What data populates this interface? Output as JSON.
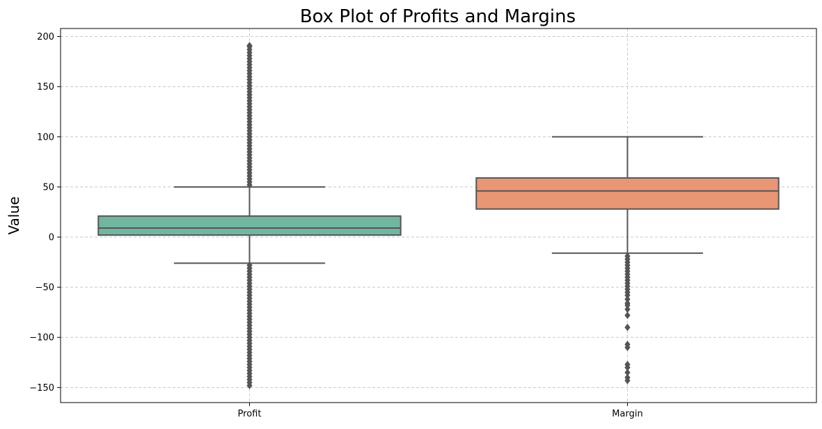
{
  "chart_data": {
    "type": "box",
    "title": "Box Plot of Profits and Margins",
    "xlabel": "",
    "ylabel": "Value",
    "ylim": [
      -165,
      208
    ],
    "yticks": [
      -150,
      -100,
      -50,
      0,
      50,
      100,
      150,
      200
    ],
    "ytick_labels": [
      "−150",
      "−100",
      "−50",
      "0",
      "50",
      "100",
      "150",
      "200"
    ],
    "grid": true,
    "categories": [
      "Profit",
      "Margin"
    ],
    "boxes": [
      {
        "category": "Profit",
        "color": "#72b6a1",
        "whisker_low": -26,
        "q1": 2,
        "median": 9,
        "q3": 21,
        "whisker_high": 50,
        "outliers_high": [
          52,
          55,
          58,
          61,
          64,
          67,
          70,
          73,
          76,
          79,
          82,
          85,
          88,
          91,
          94,
          97,
          100,
          103,
          106,
          109,
          112,
          115,
          118,
          121,
          124,
          127,
          130,
          133,
          136,
          139,
          142,
          145,
          148,
          151,
          154,
          157,
          160,
          163,
          166,
          169,
          172,
          175,
          178,
          181,
          184,
          187,
          190,
          191
        ],
        "outliers_low": [
          -28,
          -31,
          -34,
          -37,
          -40,
          -43,
          -46,
          -49,
          -52,
          -55,
          -58,
          -61,
          -64,
          -67,
          -70,
          -73,
          -76,
          -79,
          -82,
          -85,
          -88,
          -91,
          -94,
          -97,
          -100,
          -103,
          -106,
          -109,
          -112,
          -115,
          -118,
          -121,
          -124,
          -127,
          -130,
          -133,
          -136,
          -139,
          -142,
          -145,
          -148
        ]
      },
      {
        "category": "Margin",
        "color": "#e99675",
        "whisker_low": -16,
        "q1": 28,
        "median": 46,
        "q3": 59,
        "whisker_high": 100,
        "outliers_high": [],
        "outliers_low": [
          -19,
          -22,
          -25,
          -28,
          -31,
          -34,
          -37,
          -40,
          -43,
          -46,
          -49,
          -52,
          -55,
          -58,
          -62,
          -66,
          -68,
          -72,
          -78,
          -90,
          -107,
          -110,
          -127,
          -130,
          -135,
          -140,
          -143
        ]
      }
    ],
    "line_color": "#555555",
    "grid_color": "#c8c8c8"
  }
}
